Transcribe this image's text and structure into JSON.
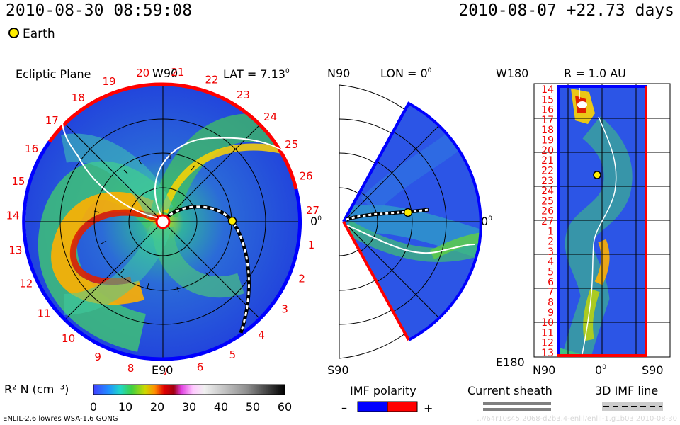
{
  "header": {
    "date": "2010-08-30 08:59:08",
    "reference": "2010-08-07 +22.73 days",
    "earth_legend": "Earth"
  },
  "panels": {
    "ecliptic": {
      "title": "Ecliptic Plane",
      "top_label": "W90",
      "lat_label": "LAT = 7.13",
      "bottom_label": "E90",
      "right_label": "0"
    },
    "meridional": {
      "top_label": "N90",
      "lon_label": "LON = 0",
      "bottom_label": "S90",
      "right_label": "0"
    },
    "map": {
      "top_label": "W180",
      "r_label": "R = 1.0 AU",
      "bottom_label": "E180",
      "x_left": "N90",
      "x_mid": "0",
      "x_right": "S90"
    }
  },
  "carrington_ring": [
    "19",
    "20",
    "21",
    "22",
    "23",
    "24",
    "25",
    "26",
    "27",
    "1",
    "2",
    "3",
    "4",
    "5",
    "6",
    "7",
    "8",
    "9",
    "10",
    "11",
    "12",
    "13",
    "14",
    "15",
    "16",
    "17",
    "18"
  ],
  "map_days": [
    "14",
    "15",
    "16",
    "17",
    "18",
    "19",
    "20",
    "21",
    "22",
    "23",
    "24",
    "25",
    "26",
    "27",
    "1",
    "2",
    "3",
    "4",
    "5",
    "6",
    "7",
    "8",
    "9",
    "10",
    "11",
    "12",
    "13"
  ],
  "colorbar": {
    "label": "R² N (cm⁻³)",
    "ticks": [
      "0",
      "10",
      "20",
      "30",
      "40",
      "50",
      "60"
    ]
  },
  "legends": {
    "imf_title": "IMF polarity",
    "minus": "–",
    "plus": "+",
    "sheath_title": "Current sheath",
    "imf_line_title": "3D IMF line"
  },
  "footer": {
    "left": "ENLIL-2.6 lowres WSA-1.6 GONG",
    "right": "..//64r10s45.2068-d2b3.4-enlil/enlil-1.g1b03    2010-08-30"
  },
  "colors": {
    "positive_polarity": "#ff0000",
    "negative_polarity": "#0000ff",
    "background_wind": "#3355ee",
    "earth": "#ffee00"
  },
  "chart_data": {
    "type": "heatmap",
    "variable": "R² N (cm⁻³)",
    "scale_range": [
      0,
      60
    ],
    "panels": [
      "Ecliptic Plane",
      "LAT = 7.13°",
      "LON = 0°",
      "R = 1.0 AU"
    ],
    "earth_marker": "Earth",
    "time": "2010-08-30 08:59:08"
  }
}
